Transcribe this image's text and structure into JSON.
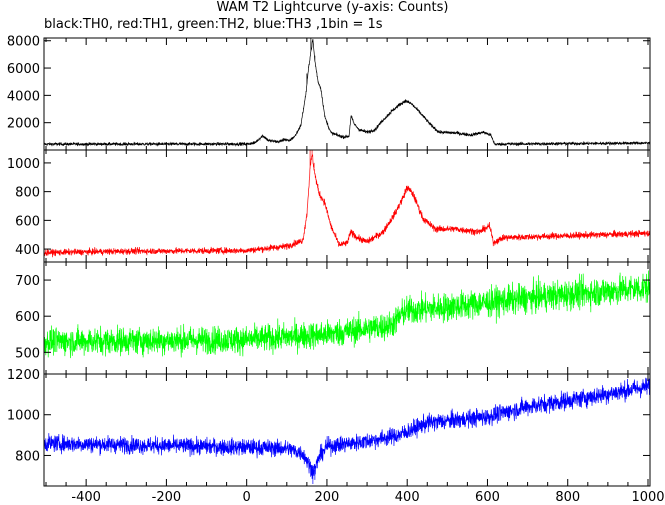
{
  "title": "WAM T2 Lightcurve (y-axis: Counts)",
  "subtitle": "black:TH0, red:TH1, green:TH2, blue:TH3 ,1bin = 1s",
  "chart_data": {
    "type": "line",
    "grid": false,
    "shared_x": {
      "xlim": [
        -505,
        1005
      ],
      "ticks": [
        -400,
        -200,
        0,
        200,
        400,
        600,
        800,
        1000
      ]
    },
    "panels": [
      {
        "name": "TH0",
        "color": "#000000",
        "ylim": [
          0,
          8200
        ],
        "yticks": [
          2000,
          4000,
          6000,
          8000
        ],
        "profile": [
          [
            -505,
            430
          ],
          [
            0,
            440
          ],
          [
            20,
            520
          ],
          [
            40,
            1050
          ],
          [
            55,
            680
          ],
          [
            80,
            600
          ],
          [
            95,
            800
          ],
          [
            105,
            650
          ],
          [
            120,
            1000
          ],
          [
            135,
            1800
          ],
          [
            148,
            4200
          ],
          [
            155,
            6200
          ],
          [
            160,
            7200
          ],
          [
            165,
            8100
          ],
          [
            170,
            6500
          ],
          [
            178,
            5000
          ],
          [
            185,
            4500
          ],
          [
            195,
            2400
          ],
          [
            210,
            1250
          ],
          [
            240,
            950
          ],
          [
            255,
            1000
          ],
          [
            260,
            2500
          ],
          [
            268,
            1900
          ],
          [
            280,
            1500
          ],
          [
            300,
            1300
          ],
          [
            320,
            1500
          ],
          [
            340,
            2200
          ],
          [
            360,
            2800
          ],
          [
            380,
            3300
          ],
          [
            395,
            3600
          ],
          [
            410,
            3400
          ],
          [
            430,
            2800
          ],
          [
            460,
            1800
          ],
          [
            480,
            1300
          ],
          [
            520,
            1250
          ],
          [
            560,
            1100
          ],
          [
            590,
            1300
          ],
          [
            608,
            1100
          ],
          [
            618,
            420
          ],
          [
            650,
            440
          ],
          [
            1005,
            510
          ]
        ],
        "noise": 110,
        "spikes": [
          [
            160,
            8200
          ],
          [
            165,
            7900
          ],
          [
            170,
            6900
          ],
          [
            150,
            5600
          ]
        ]
      },
      {
        "name": "TH1",
        "color": "#ff0000",
        "ylim": [
          310,
          1090
        ],
        "yticks": [
          400,
          600,
          800,
          1000
        ],
        "profile": [
          [
            -505,
            375
          ],
          [
            -300,
            385
          ],
          [
            0,
            390
          ],
          [
            100,
            420
          ],
          [
            140,
            460
          ],
          [
            150,
            640
          ],
          [
            158,
            960
          ],
          [
            163,
            1060
          ],
          [
            170,
            920
          ],
          [
            180,
            790
          ],
          [
            195,
            720
          ],
          [
            210,
            560
          ],
          [
            230,
            430
          ],
          [
            250,
            440
          ],
          [
            260,
            520
          ],
          [
            275,
            480
          ],
          [
            300,
            450
          ],
          [
            340,
            520
          ],
          [
            370,
            650
          ],
          [
            390,
            760
          ],
          [
            400,
            830
          ],
          [
            415,
            780
          ],
          [
            440,
            610
          ],
          [
            470,
            540
          ],
          [
            520,
            540
          ],
          [
            580,
            520
          ],
          [
            605,
            560
          ],
          [
            615,
            445
          ],
          [
            640,
            480
          ],
          [
            1005,
            510
          ]
        ],
        "noise": 18,
        "spikes": [
          [
            158,
            1090
          ],
          [
            163,
            1090
          ],
          [
            168,
            1000
          ]
        ]
      },
      {
        "name": "TH2",
        "color": "#00ff00",
        "ylim": [
          440,
          750
        ],
        "yticks": [
          500,
          600,
          700
        ],
        "profile": [
          [
            -505,
            530
          ],
          [
            0,
            535
          ],
          [
            200,
            550
          ],
          [
            360,
            575
          ],
          [
            395,
            615
          ],
          [
            500,
            625
          ],
          [
            700,
            650
          ],
          [
            1005,
            680
          ]
        ],
        "noise": 22,
        "spikes": []
      },
      {
        "name": "TH3",
        "color": "#0000ff",
        "ylim": [
          650,
          1200
        ],
        "yticks": [
          800,
          1000,
          1200
        ],
        "profile": [
          [
            -505,
            860
          ],
          [
            0,
            840
          ],
          [
            100,
            835
          ],
          [
            140,
            810
          ],
          [
            160,
            740
          ],
          [
            170,
            730
          ],
          [
            180,
            790
          ],
          [
            200,
            845
          ],
          [
            300,
            870
          ],
          [
            380,
            900
          ],
          [
            450,
            960
          ],
          [
            600,
            990
          ],
          [
            700,
            1040
          ],
          [
            850,
            1085
          ],
          [
            1005,
            1140
          ]
        ],
        "noise": 25,
        "spikes": [
          [
            165,
            660
          ],
          [
            170,
            680
          ]
        ]
      }
    ]
  }
}
